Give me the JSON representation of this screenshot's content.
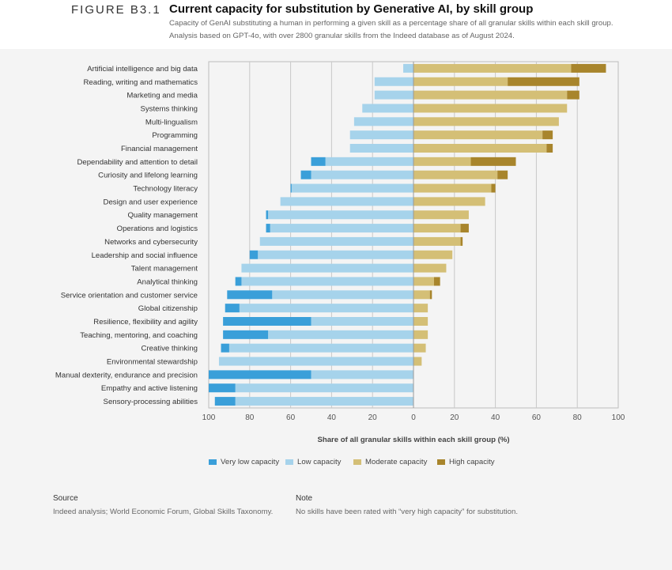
{
  "header": {
    "figure_label": "FIGURE B3.1",
    "title": "Current capacity for substitution by Generative AI, by skill group",
    "subtitle_line1": "Capacity of GenAI substituting a human in performing a given skill as a percentage share of all granular skills within each skill group.",
    "subtitle_line2": "Analysis based on GPT-4o, with over 2800 granular skills from the Indeed database as of August 2024."
  },
  "chart_data": {
    "type": "bar",
    "orientation": "horizontal-diverging",
    "xlabel": "Share of all granular skills within each skill group (%)",
    "xlim": [
      -100,
      100
    ],
    "tick_values": [
      -100,
      -80,
      -60,
      -40,
      -20,
      0,
      20,
      40,
      60,
      80,
      100
    ],
    "tick_labels": [
      "100",
      "80",
      "60",
      "40",
      "20",
      "0",
      "20",
      "40",
      "60",
      "80",
      "100"
    ],
    "grid": true,
    "legend_position": "bottom",
    "categories": [
      "Artificial intelligence and big data",
      "Reading, writing and mathematics",
      "Marketing and media",
      "Systems thinking",
      "Multi-lingualism",
      "Programming",
      "Financial management",
      "Dependability and attention to detail",
      "Curiosity and lifelong learning",
      "Technology literacy",
      "Design and user experience",
      "Quality management",
      "Operations and logistics",
      "Networks and cybersecurity",
      "Leadership and social influence",
      "Talent management",
      "Analytical thinking",
      "Service orientation and customer service",
      "Global citizenship",
      "Resilience, flexibility and agility",
      "Teaching, mentoring, and coaching",
      "Creative thinking",
      "Environmental stewardship",
      "Manual dexterity, endurance and precision",
      "Empathy and active listening",
      "Sensory-processing abilities"
    ],
    "series": [
      {
        "name": "Very low capacity",
        "side": "left",
        "color": "#3a9fd9",
        "values": [
          0,
          0,
          0,
          0,
          0,
          0,
          0,
          7,
          5,
          0.5,
          0,
          1,
          2,
          0,
          4,
          0,
          3,
          22,
          7,
          43,
          22,
          4,
          0,
          50,
          13,
          10
        ]
      },
      {
        "name": "Low capacity",
        "side": "left",
        "color": "#a6d3eb",
        "values": [
          5,
          19,
          19,
          25,
          29,
          31,
          31,
          43,
          50,
          59.5,
          65,
          71,
          70,
          75,
          76,
          84,
          84,
          69,
          85,
          50,
          71,
          90,
          95,
          50,
          87,
          87
        ]
      },
      {
        "name": "Moderate capacity",
        "side": "right",
        "color": "#d4bf76",
        "values": [
          77,
          46,
          75,
          75,
          71,
          63,
          65,
          28,
          41,
          38,
          35,
          27,
          23,
          23,
          19,
          16,
          10,
          8,
          7,
          7,
          7,
          6,
          4,
          0,
          0,
          0
        ]
      },
      {
        "name": "High capacity",
        "side": "right",
        "color": "#a8852c",
        "values": [
          17,
          35,
          6,
          0,
          0,
          5,
          3,
          22,
          5,
          2,
          0,
          0,
          4,
          1,
          0,
          0,
          3,
          1,
          0,
          0,
          0,
          0,
          0,
          0,
          0,
          0
        ]
      }
    ]
  },
  "legend": {
    "items": [
      "Very low capacity",
      "Low capacity",
      "Moderate capacity",
      "High capacity"
    ],
    "colors": [
      "#3a9fd9",
      "#a6d3eb",
      "#d4bf76",
      "#a8852c"
    ]
  },
  "footer": {
    "source_heading": "Source",
    "source_text": "Indeed analysis; World Economic Forum, Global Skills Taxonomy.",
    "note_heading": "Note",
    "note_text": "No skills have been rated with “very high capacity” for substitution."
  }
}
